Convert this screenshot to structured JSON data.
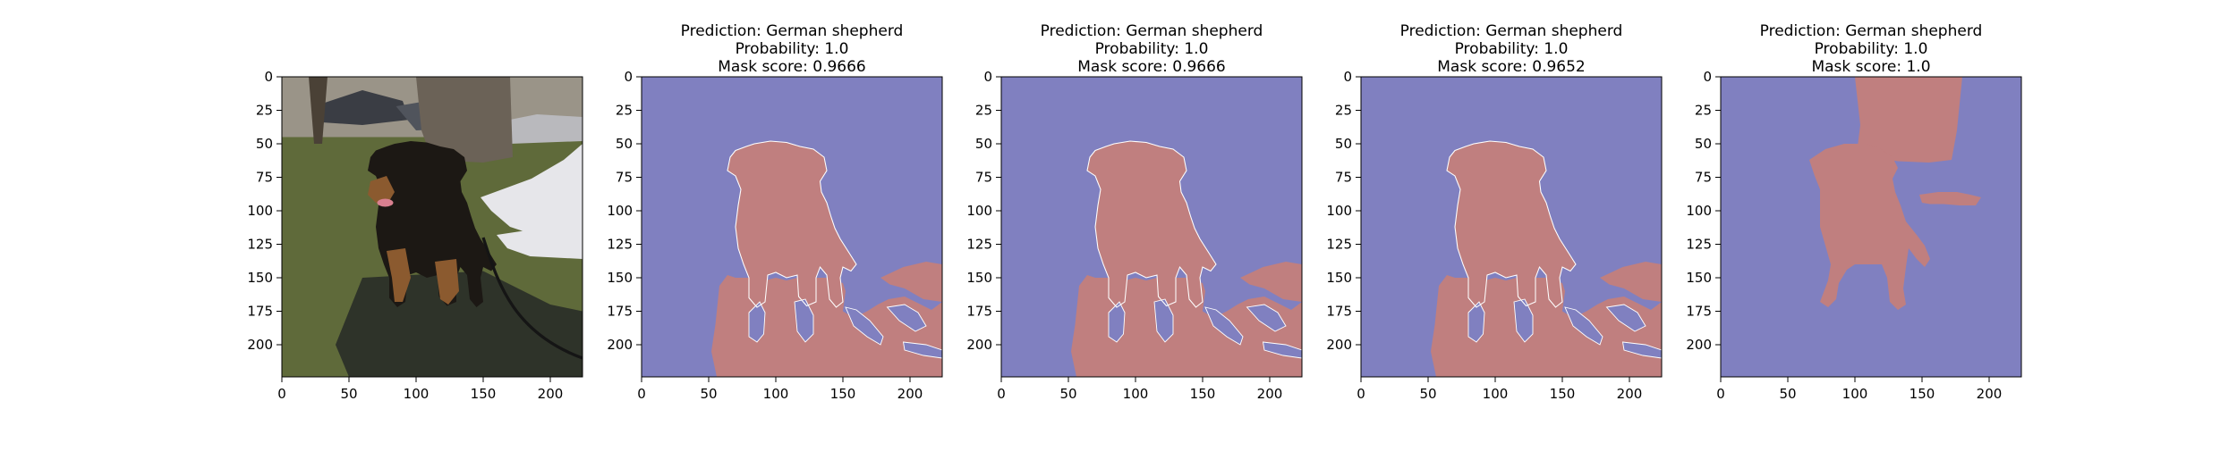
{
  "colors": {
    "background_mask": "#8080c0",
    "foreground_mask": "#c07f7f",
    "axis": "#000000",
    "grass": "#5f6a3a",
    "shadow": "#2e3329",
    "dog_dark": "#1c1814",
    "dog_tan": "#8b5a2f",
    "jacket": "#e6e6ea",
    "tree": "#6b6257"
  },
  "chart_data": [
    {
      "type": "image",
      "content": "photo of German shepherd dog on a leash in a park",
      "title_lines": [],
      "xlim": [
        0,
        224
      ],
      "ylim": [
        224,
        0
      ],
      "xticks": [
        0,
        50,
        100,
        150,
        200
      ],
      "yticks": [
        0,
        25,
        50,
        75,
        100,
        125,
        150,
        175,
        200
      ],
      "grid": false
    },
    {
      "type": "heatmap",
      "variant": "pred_a",
      "title_lines": [
        "Prediction: German shepherd",
        "Probability: 1.0",
        "Mask score: 0.9666"
      ],
      "xlim": [
        0,
        224
      ],
      "ylim": [
        224,
        0
      ],
      "xticks": [
        0,
        50,
        100,
        150,
        200
      ],
      "yticks": [
        0,
        25,
        50,
        75,
        100,
        125,
        150,
        175,
        200
      ],
      "grid": false
    },
    {
      "type": "heatmap",
      "variant": "pred_a",
      "title_lines": [
        "Prediction: German shepherd",
        "Probability: 1.0",
        "Mask score: 0.9666"
      ],
      "xlim": [
        0,
        224
      ],
      "ylim": [
        224,
        0
      ],
      "xticks": [
        0,
        50,
        100,
        150,
        200
      ],
      "yticks": [
        0,
        25,
        50,
        75,
        100,
        125,
        150,
        175,
        200
      ],
      "grid": false
    },
    {
      "type": "heatmap",
      "variant": "pred_a",
      "title_lines": [
        "Prediction: German shepherd",
        "Probability: 1.0",
        "Mask score: 0.9652"
      ],
      "xlim": [
        0,
        224
      ],
      "ylim": [
        224,
        0
      ],
      "xticks": [
        0,
        50,
        100,
        150,
        200
      ],
      "yticks": [
        0,
        25,
        50,
        75,
        100,
        125,
        150,
        175,
        200
      ],
      "grid": false
    },
    {
      "type": "heatmap",
      "variant": "ground_truth",
      "title_lines": [
        "Prediction: German shepherd",
        "Probability: 1.0",
        "Mask score: 1.0"
      ],
      "xlim": [
        0,
        224
      ],
      "ylim": [
        224,
        0
      ],
      "xticks": [
        0,
        50,
        100,
        150,
        200
      ],
      "yticks": [
        0,
        25,
        50,
        75,
        100,
        125,
        150,
        175,
        200
      ],
      "grid": false
    }
  ]
}
